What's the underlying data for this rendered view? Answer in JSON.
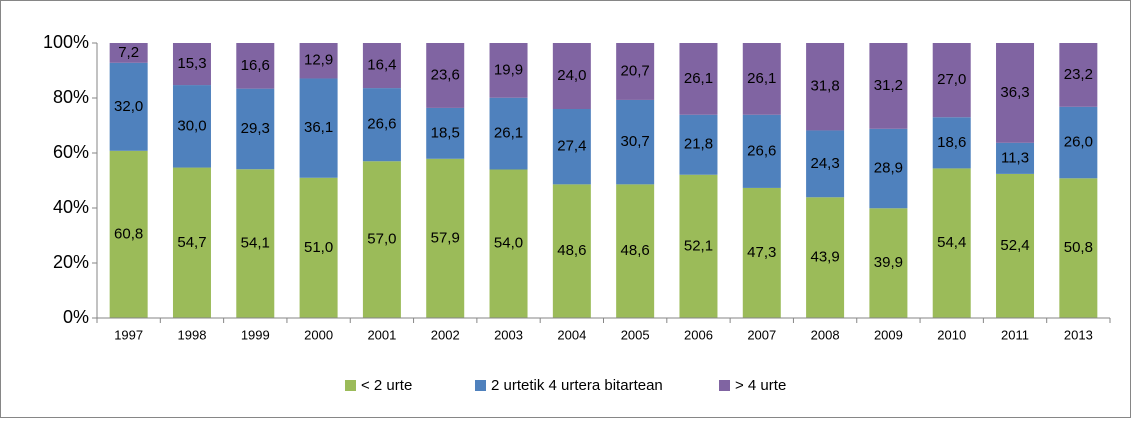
{
  "chart_data": {
    "type": "stacked_bar",
    "categories": [
      "1997",
      "1998",
      "1999",
      "2000",
      "2001",
      "2002",
      "2003",
      "2004",
      "2005",
      "2006",
      "2007",
      "2008",
      "2009",
      "2010",
      "2011",
      "2013"
    ],
    "series": [
      {
        "name": "< 2 urte",
        "color": "#9bbb59",
        "values": [
          60.8,
          54.7,
          54.1,
          51.0,
          57.0,
          57.9,
          54.0,
          48.6,
          48.6,
          52.1,
          47.3,
          43.9,
          39.9,
          54.4,
          52.4,
          50.8
        ],
        "value_labels": [
          "60,8",
          "54,7",
          "54,1",
          "51,0",
          "57,0",
          "57,9",
          "54,0",
          "48,6",
          "48,6",
          "52,1",
          "47,3",
          "43,9",
          "39,9",
          "54,4",
          "52,4",
          "50,8"
        ]
      },
      {
        "name": "2 urtetik 4 urtera bitartean",
        "color": "#4f81bd",
        "values": [
          32.0,
          30.0,
          29.3,
          36.1,
          26.6,
          18.5,
          26.1,
          27.4,
          30.7,
          21.8,
          26.6,
          24.3,
          28.9,
          18.6,
          11.3,
          26.0
        ],
        "value_labels": [
          "32,0",
          "30,0",
          "29,3",
          "36,1",
          "26,6",
          "18,5",
          "26,1",
          "27,4",
          "30,7",
          "21,8",
          "26,6",
          "24,3",
          "28,9",
          "18,6",
          "11,3",
          "26,0"
        ]
      },
      {
        "name": "> 4 urte",
        "color": "#8064a2",
        "values": [
          7.2,
          15.3,
          16.6,
          12.9,
          16.4,
          23.6,
          19.9,
          24.0,
          20.7,
          26.1,
          26.1,
          31.8,
          31.2,
          27.0,
          36.3,
          23.2
        ],
        "value_labels": [
          "7,2",
          "15,3",
          "16,6",
          "12,9",
          "16,4",
          "23,6",
          "19,9",
          "24,0",
          "20,7",
          "26,1",
          "26,1",
          "31,8",
          "31,2",
          "27,0",
          "36,3",
          "23,2"
        ]
      }
    ],
    "ylim": [
      0,
      100
    ],
    "yticks": [
      {
        "value": 0,
        "label": "0%"
      },
      {
        "value": 20,
        "label": "20%"
      },
      {
        "value": 40,
        "label": "40%"
      },
      {
        "value": 60,
        "label": "60%"
      },
      {
        "value": 80,
        "label": "80%"
      },
      {
        "value": 100,
        "label": "100%"
      }
    ],
    "grid": false,
    "legend": "bottom"
  }
}
